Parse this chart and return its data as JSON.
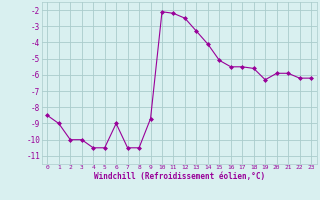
{
  "x": [
    0,
    1,
    2,
    3,
    4,
    5,
    6,
    7,
    8,
    9,
    10,
    11,
    12,
    13,
    14,
    15,
    16,
    17,
    18,
    19,
    20,
    21,
    22,
    23
  ],
  "y": [
    -8.5,
    -9.0,
    -10.0,
    -10.0,
    -10.5,
    -10.5,
    -9.0,
    -10.5,
    -10.5,
    -8.7,
    -2.1,
    -2.2,
    -2.5,
    -3.3,
    -4.1,
    -5.1,
    -5.5,
    -5.5,
    -5.6,
    -6.3,
    -5.9,
    -5.9,
    -6.2,
    -6.2
  ],
  "line_color": "#990099",
  "marker": "D",
  "marker_size": 2,
  "bg_color": "#d9f0f0",
  "grid_color": "#aacccc",
  "xlabel": "Windchill (Refroidissement éolien,°C)",
  "xlabel_color": "#990099",
  "tick_color": "#990099",
  "ylim": [
    -11.5,
    -1.5
  ],
  "xlim": [
    -0.5,
    23.5
  ],
  "yticks": [
    -11,
    -10,
    -9,
    -8,
    -7,
    -6,
    -5,
    -4,
    -3,
    -2
  ],
  "xticks": [
    0,
    1,
    2,
    3,
    4,
    5,
    6,
    7,
    8,
    9,
    10,
    11,
    12,
    13,
    14,
    15,
    16,
    17,
    18,
    19,
    20,
    21,
    22,
    23
  ]
}
